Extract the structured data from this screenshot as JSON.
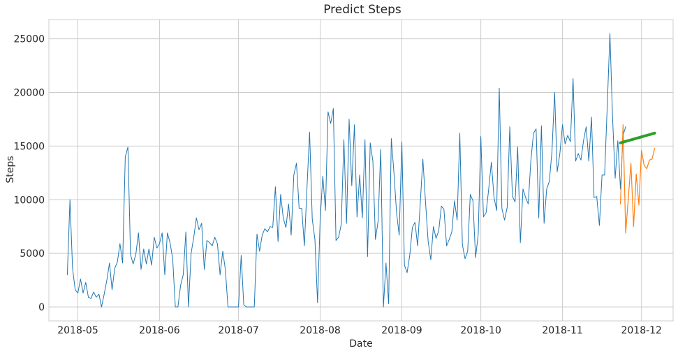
{
  "chart_data": {
    "type": "line",
    "title": "Predict Steps",
    "xlabel": "Date",
    "ylabel": "Steps",
    "ylim": [
      -1300,
      26800
    ],
    "xlim": [
      "2018-04-20",
      "2018-12-13"
    ],
    "grid": true,
    "x_ticks": [
      "2018-05",
      "2018-06",
      "2018-07",
      "2018-08",
      "2018-09",
      "2018-10",
      "2018-11",
      "2018-12"
    ],
    "x_tick_dates": [
      "2018-05-01",
      "2018-06-01",
      "2018-07-01",
      "2018-08-01",
      "2018-09-01",
      "2018-10-01",
      "2018-11-01",
      "2018-12-01"
    ],
    "y_ticks": [
      0,
      5000,
      10000,
      15000,
      20000,
      25000
    ],
    "y_tick_labels": [
      "0",
      "5000",
      "10000",
      "15000",
      "20000",
      "25000"
    ],
    "series": [
      {
        "color": "#1f77b4",
        "start_date": "2018-04-27",
        "values": [
          3000,
          10000,
          3600,
          1600,
          1300,
          2600,
          1300,
          2300,
          900,
          800,
          1400,
          900,
          1200,
          0,
          1200,
          2500,
          4100,
          1600,
          3600,
          4200,
          5900,
          4100,
          14000,
          14900,
          4900,
          4000,
          4900,
          6900,
          3500,
          5400,
          4000,
          5400,
          3900,
          6500,
          5500,
          5900,
          6900,
          3000,
          6900,
          6000,
          4500,
          0,
          0,
          2000,
          3000,
          7000,
          0,
          5000,
          6500,
          8300,
          7200,
          7800,
          3500,
          6200,
          6000,
          5700,
          6500,
          5900,
          3000,
          5200,
          3500,
          0,
          0,
          0,
          0,
          0,
          4800,
          200,
          0,
          0,
          0,
          0,
          6800,
          5200,
          6700,
          7300,
          7000,
          7500,
          7400,
          11200,
          6100,
          10500,
          8300,
          7400,
          9600,
          6700,
          12300,
          13400,
          9200,
          9200,
          5700,
          11200,
          16300,
          8200,
          6300,
          400,
          8100,
          12200,
          9000,
          18200,
          17100,
          18500,
          6200,
          6500,
          7700,
          15600,
          7800,
          17500,
          11300,
          17000,
          8400,
          12300,
          8300,
          15600,
          4700,
          15300,
          13600,
          6300,
          8000,
          14700,
          0,
          4100,
          300,
          15700,
          12500,
          8800,
          6700,
          15400,
          3900,
          3200,
          4800,
          7400,
          7900,
          5700,
          9700,
          13800,
          9800,
          6100,
          4400,
          7500,
          6400,
          7100,
          9400,
          9100,
          5700,
          6300,
          7000,
          9900,
          8100,
          16200,
          5800,
          4500,
          5200,
          10500,
          9900,
          4600,
          6800,
          15900,
          8400,
          8800,
          11000,
          13500,
          10200,
          9000,
          20400,
          9200,
          8100,
          9300,
          16800,
          10300,
          9800,
          14900,
          6000,
          11000,
          10200,
          9600,
          13700,
          16200,
          16600,
          8300,
          16900,
          7800,
          11000,
          11700,
          14500,
          20000,
          12600,
          14300,
          17000,
          15200,
          16000,
          15400,
          21300,
          13600,
          14300,
          13700,
          15500,
          16800,
          13600,
          17700,
          10200,
          10300,
          7600,
          12300,
          12300,
          18800,
          25500,
          17800,
          12000,
          15500,
          11000,
          16000,
          16800
        ]
      },
      {
        "color": "#ff7f0e",
        "start_date": "2018-11-23",
        "values": [
          9600,
          17000,
          6900,
          10200,
          13400,
          7500,
          12400,
          9500,
          14600,
          13200,
          12900,
          13700,
          13800,
          14800
        ]
      },
      {
        "color": "#2ca02c",
        "start_date": "2018-11-23",
        "values": [
          15300,
          15370,
          15440,
          15510,
          15580,
          15650,
          15720,
          15790,
          15860,
          15930,
          16000,
          16070,
          16140,
          16210
        ]
      }
    ]
  }
}
